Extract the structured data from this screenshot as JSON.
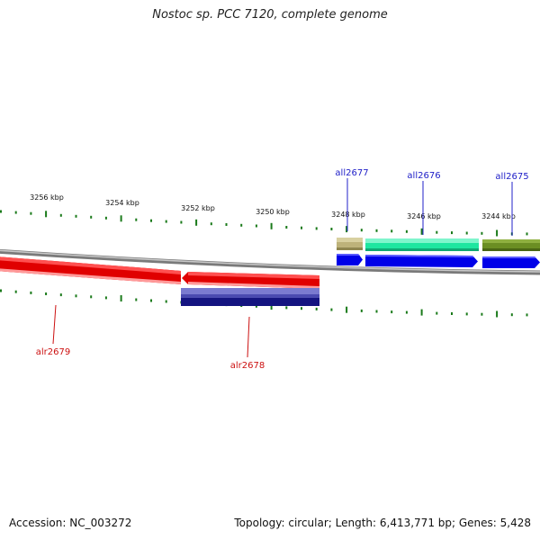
{
  "title": "Nostoc sp. PCC 7120, complete genome",
  "footer": {
    "accession": "Accession: NC_003272",
    "topology": "Topology: circular; Length: 6,413,771 bp; Genes: 5,428"
  },
  "ticks": [
    "3256 kbp",
    "3254 kbp",
    "3252 kbp",
    "3250 kbp",
    "3248 kbp",
    "3246 kbp",
    "3244 kbp"
  ],
  "genes": [
    {
      "label": "all2677",
      "color": "#2020c8"
    },
    {
      "label": "all2676",
      "color": "#2020c8"
    },
    {
      "label": "all2675",
      "color": "#2020c8"
    },
    {
      "label": "alr2679",
      "color": "#cc1010"
    },
    {
      "label": "alr2678",
      "color": "#cc1010"
    }
  ],
  "colors": {
    "backbone": "#808080",
    "tick": "#1a7a1a",
    "forward_gene": "#e00000",
    "reverse_gene": "#0000e8",
    "orf_tan": "#bdb27a",
    "orf_mint": "#1ee6a0",
    "orf_olive": "#6b8e23",
    "orf_navy": "#141480"
  }
}
